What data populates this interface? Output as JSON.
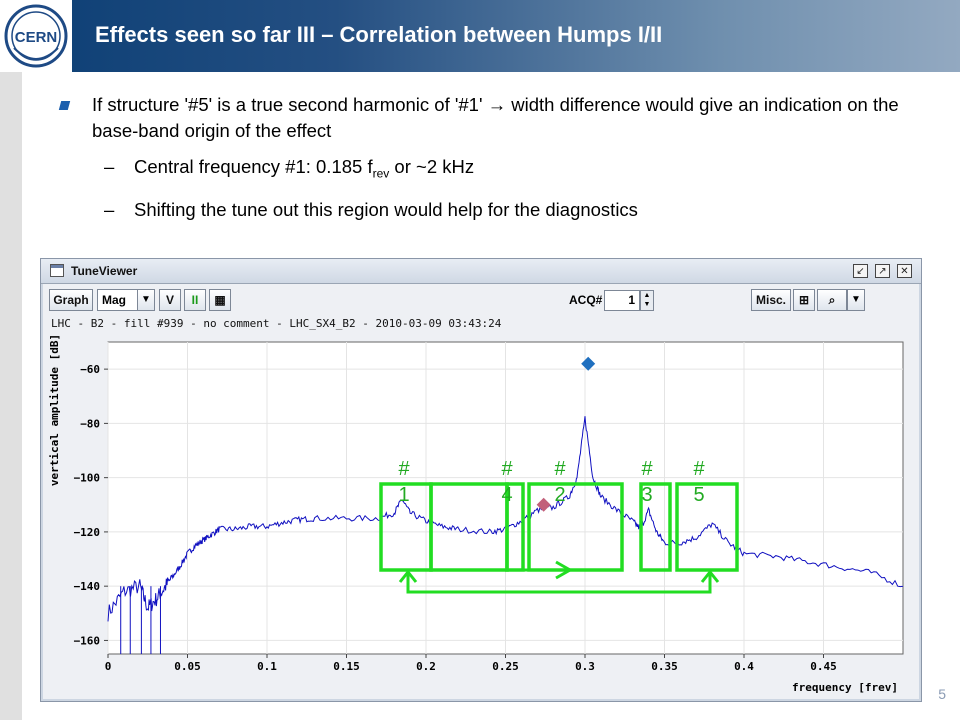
{
  "slide": {
    "title": "Effects seen so far III – Correlation between Humps I/II",
    "bullet_main": "If structure '#5' is a true second harmonic of '#1' → width difference would give an indication on the base-band origin of the effect",
    "sub1_pre": "Central frequency #1: 0.185 f",
    "sub1_subscript": "rev",
    "sub1_post": " or ~2 kHz",
    "sub2": "Shifting the tune out this region would help for the diagnostics",
    "dash": "–",
    "page_number": "5",
    "logo_text": "CERN"
  },
  "window": {
    "title": "TuneViewer",
    "buttons": {
      "graph": "Graph",
      "mag": "Mag",
      "v": "V",
      "pause": "II",
      "acq_label": "ACQ#",
      "acq_value": "1",
      "misc": "Misc."
    },
    "info": "LHC - B2 - fill #939 - no comment - LHC_SX4_B2 - 2010-03-09 03:43:24"
  },
  "chart_data": {
    "type": "line",
    "xlabel": "frequency [frev]",
    "ylabel": "vertical amplitude [dB]",
    "xlim": [
      0,
      0.5
    ],
    "ylim": [
      -165,
      -50
    ],
    "x_ticks": [
      "0",
      "0.05",
      "0.1",
      "0.15",
      "0.2",
      "0.25",
      "0.3",
      "0.35",
      "0.4",
      "0.45"
    ],
    "y_ticks": [
      "-60",
      "-80",
      "-100",
      "-120",
      "-140",
      "-160"
    ],
    "series_color": "#1010c0",
    "spectrum": [
      [
        0.0,
        -150
      ],
      [
        0.01,
        -142
      ],
      [
        0.02,
        -140
      ],
      [
        0.025,
        -148
      ],
      [
        0.03,
        -145
      ],
      [
        0.035,
        -141
      ],
      [
        0.04,
        -137
      ],
      [
        0.045,
        -133
      ],
      [
        0.05,
        -128
      ],
      [
        0.055,
        -125
      ],
      [
        0.06,
        -123
      ],
      [
        0.065,
        -121
      ],
      [
        0.07,
        -119
      ],
      [
        0.08,
        -119
      ],
      [
        0.09,
        -118
      ],
      [
        0.1,
        -118
      ],
      [
        0.11,
        -116.5
      ],
      [
        0.12,
        -115.5
      ],
      [
        0.13,
        -115
      ],
      [
        0.15,
        -115
      ],
      [
        0.17,
        -115
      ],
      [
        0.18,
        -113
      ],
      [
        0.185,
        -108
      ],
      [
        0.19,
        -113
      ],
      [
        0.2,
        -116
      ],
      [
        0.21,
        -118
      ],
      [
        0.22,
        -119
      ],
      [
        0.24,
        -120
      ],
      [
        0.25,
        -119
      ],
      [
        0.26,
        -116
      ],
      [
        0.27,
        -112
      ],
      [
        0.28,
        -111
      ],
      [
        0.29,
        -107
      ],
      [
        0.295,
        -100
      ],
      [
        0.3,
        -78
      ],
      [
        0.305,
        -100
      ],
      [
        0.31,
        -107
      ],
      [
        0.32,
        -112
      ],
      [
        0.33,
        -116
      ],
      [
        0.335,
        -119
      ],
      [
        0.34,
        -112
      ],
      [
        0.345,
        -120
      ],
      [
        0.35,
        -124
      ],
      [
        0.36,
        -124
      ],
      [
        0.37,
        -122
      ],
      [
        0.38,
        -117
      ],
      [
        0.39,
        -124
      ],
      [
        0.4,
        -128
      ],
      [
        0.42,
        -129
      ],
      [
        0.44,
        -131
      ],
      [
        0.46,
        -133
      ],
      [
        0.48,
        -135
      ],
      [
        0.5,
        -140
      ]
    ],
    "markers": [
      {
        "x": 0.302,
        "y": -58,
        "shape": "diamond",
        "color": "#1f6fbf"
      },
      {
        "x": 0.274,
        "y": -110,
        "shape": "diamond",
        "color": "#c2607a"
      }
    ],
    "annotation_color": "#22dd22",
    "box_labels": [
      {
        "hash": "#",
        "num": "1"
      },
      {
        "hash": "#",
        "num": "4"
      },
      {
        "hash": "#",
        "num": "2"
      },
      {
        "hash": "#",
        "num": "3"
      },
      {
        "hash": "#",
        "num": "5"
      }
    ]
  }
}
